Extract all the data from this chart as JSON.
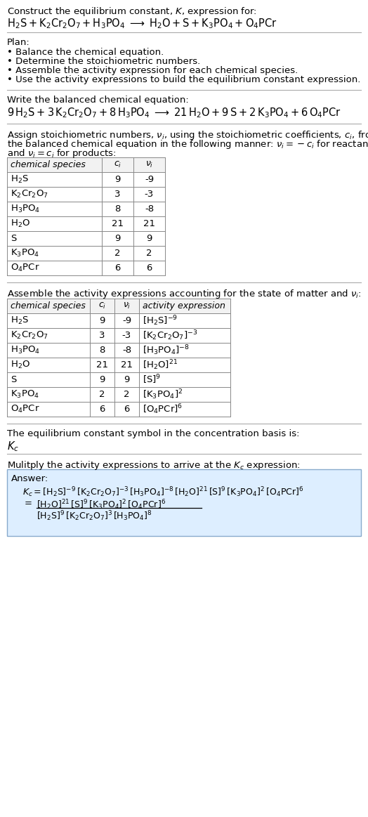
{
  "bg_color": "#ffffff",
  "text_color": "#000000",
  "plan_items": [
    "• Balance the chemical equation.",
    "• Determine the stoichiometric numbers.",
    "• Assemble the activity expression for each chemical species.",
    "• Use the activity expressions to build the equilibrium constant expression."
  ],
  "table1_data": [
    [
      "H_2S",
      "9",
      "-9"
    ],
    [
      "K_2Cr_2O_7",
      "3",
      "-3"
    ],
    [
      "H_3PO_4",
      "8",
      "-8"
    ],
    [
      "H_2O",
      "21",
      "21"
    ],
    [
      "S",
      "9",
      "9"
    ],
    [
      "K_3PO_4",
      "2",
      "2"
    ],
    [
      "O_4PCr",
      "6",
      "6"
    ]
  ],
  "table2_data": [
    [
      "H_2S",
      "9",
      "-9",
      "[H_2S]^{-9}"
    ],
    [
      "K_2Cr_2O_7",
      "3",
      "-3",
      "[K_2Cr_2O_7]^{-3}"
    ],
    [
      "H_3PO_4",
      "8",
      "-8",
      "[H_3PO_4]^{-8}"
    ],
    [
      "H_2O",
      "21",
      "21",
      "[H_2O]^{21}"
    ],
    [
      "S",
      "9",
      "9",
      "[S]^{9}"
    ],
    [
      "K_3PO_4",
      "2",
      "2",
      "[K_3PO_4]^{2}"
    ],
    [
      "O_4PCr",
      "6",
      "6",
      "[O_4PCr]^{6}"
    ]
  ],
  "answer_box_color": "#ddeeff",
  "answer_box_border": "#88aacc",
  "table_line_color": "#888888",
  "hline_color": "#aaaaaa"
}
